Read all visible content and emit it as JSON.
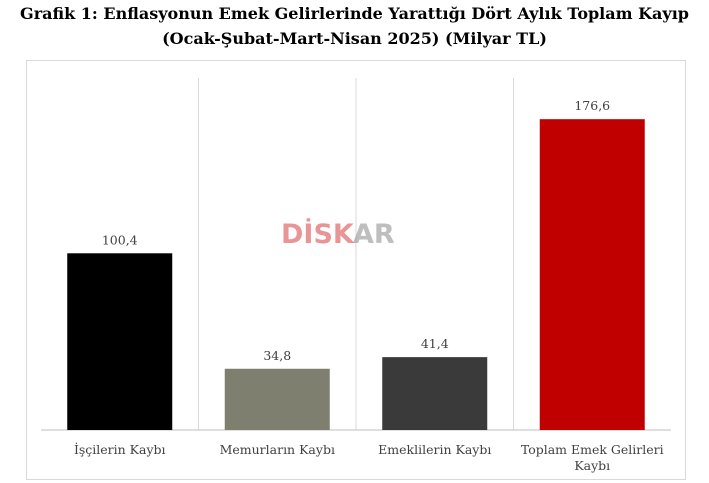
{
  "title_line1": "Grafik 1: Enflasyonun Emek Gelirlerinde Yarattığı Dört Aylık Toplam Kayıp",
  "title_line2": "(Ocak-Şubat-Mart-Nisan 2025) (Milyar TL)",
  "watermark": "DİSKAR",
  "chart_data": {
    "type": "bar",
    "categories": [
      "İşçilerin Kaybı",
      "Memurların Kaybı",
      "Emeklilerin Kaybı",
      "Toplam Emek Gelirleri Kaybı"
    ],
    "category_lines": [
      [
        "İşçilerin Kaybı"
      ],
      [
        "Memurların Kaybı"
      ],
      [
        "Emeklilerin Kaybı"
      ],
      [
        "Toplam Emek Gelirleri",
        "Kaybı"
      ]
    ],
    "values": [
      100.4,
      34.8,
      41.4,
      176.6
    ],
    "value_labels": [
      "100,4",
      "34,8",
      "41,4",
      "176,6"
    ],
    "colors": [
      "#000000",
      "#7f7f6f",
      "#3a3a3a",
      "#c00000"
    ],
    "ylim": [
      0,
      200
    ],
    "grid": false,
    "legend": "none"
  }
}
